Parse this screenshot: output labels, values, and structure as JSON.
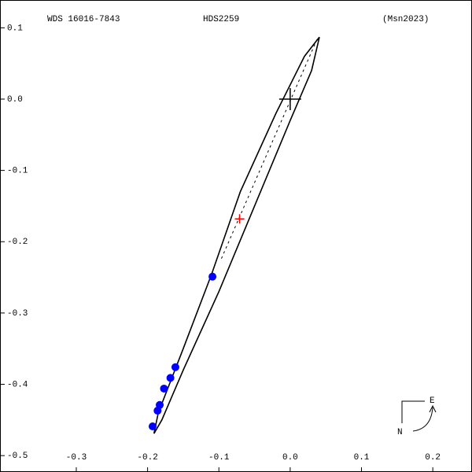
{
  "chart_data": {
    "type": "scatter",
    "title": "WDS 16016-7843",
    "subtitle": "HDS2259",
    "reference": "(Msn2023)",
    "xlim": [
      -0.407,
      0.255
    ],
    "ylim": [
      -0.523,
      0.139
    ],
    "xticks": [
      -0.3,
      -0.2,
      -0.1,
      {
        "value": 0,
        "label": "0.0"
      },
      0.1,
      0.2
    ],
    "yticks": [
      0.1,
      {
        "value": 0,
        "label": "0.0"
      },
      -0.1,
      -0.2,
      -0.3,
      -0.4,
      -0.5
    ],
    "compass": {
      "east": "E",
      "north": "N"
    },
    "series": [
      {
        "style": "line",
        "color": "#000000",
        "x": [
          0.041,
          0.02,
          -0.02,
          -0.07,
          -0.11,
          -0.15,
          -0.185,
          -0.191,
          -0.18,
          -0.15,
          -0.1,
          -0.05,
          0.0,
          0.03,
          0.041
        ],
        "y": [
          0.087,
          0.06,
          -0.02,
          -0.13,
          -0.245,
          -0.35,
          -0.44,
          -0.469,
          -0.45,
          -0.38,
          -0.27,
          -0.15,
          -0.03,
          0.04,
          0.087
        ]
      },
      {
        "style": "marker",
        "color": "#0000ff",
        "x": [
          -0.109,
          -0.161,
          -0.168,
          -0.177,
          -0.183,
          -0.186,
          -0.193
        ],
        "y": [
          -0.249,
          -0.376,
          -0.391,
          -0.406,
          -0.429,
          -0.437,
          -0.459
        ]
      },
      {
        "style": "cross",
        "color": "#ff0000",
        "x": [
          -0.071
        ],
        "y": [
          -0.168
        ]
      },
      {
        "style": "cross",
        "color": "#000000",
        "x": [
          0
        ],
        "y": [
          0
        ]
      }
    ]
  }
}
